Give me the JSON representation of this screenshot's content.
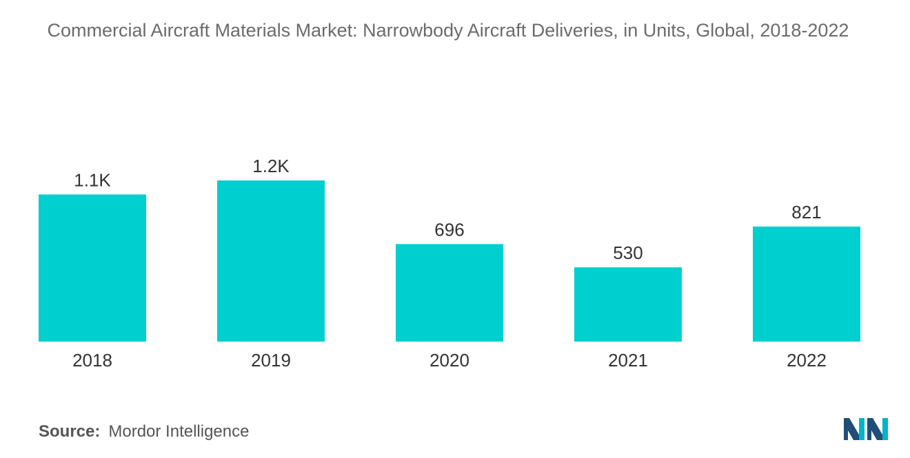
{
  "chart_data": {
    "type": "bar",
    "title": "Commercial Aircraft Materials Market: Narrowbody Aircraft Deliveries, in Units, Global, 2018-2022",
    "categories": [
      "2018",
      "2019",
      "2020",
      "2021",
      "2022"
    ],
    "values": [
      1050,
      1150,
      696,
      530,
      821
    ],
    "value_labels": [
      "1.1K",
      "1.2K",
      "696",
      "530",
      "821"
    ],
    "xlabel": "",
    "ylabel": "",
    "ylim": [
      0,
      1150
    ],
    "grid": false,
    "legend": "none",
    "bar_color": "#00cfd0"
  },
  "source": {
    "label": "Source:",
    "text": "Mordor Intelligence"
  },
  "logo": {
    "icon": "mordor-intelligence-logo-icon",
    "colors": [
      "#1f4e79",
      "#00b5c8"
    ]
  }
}
